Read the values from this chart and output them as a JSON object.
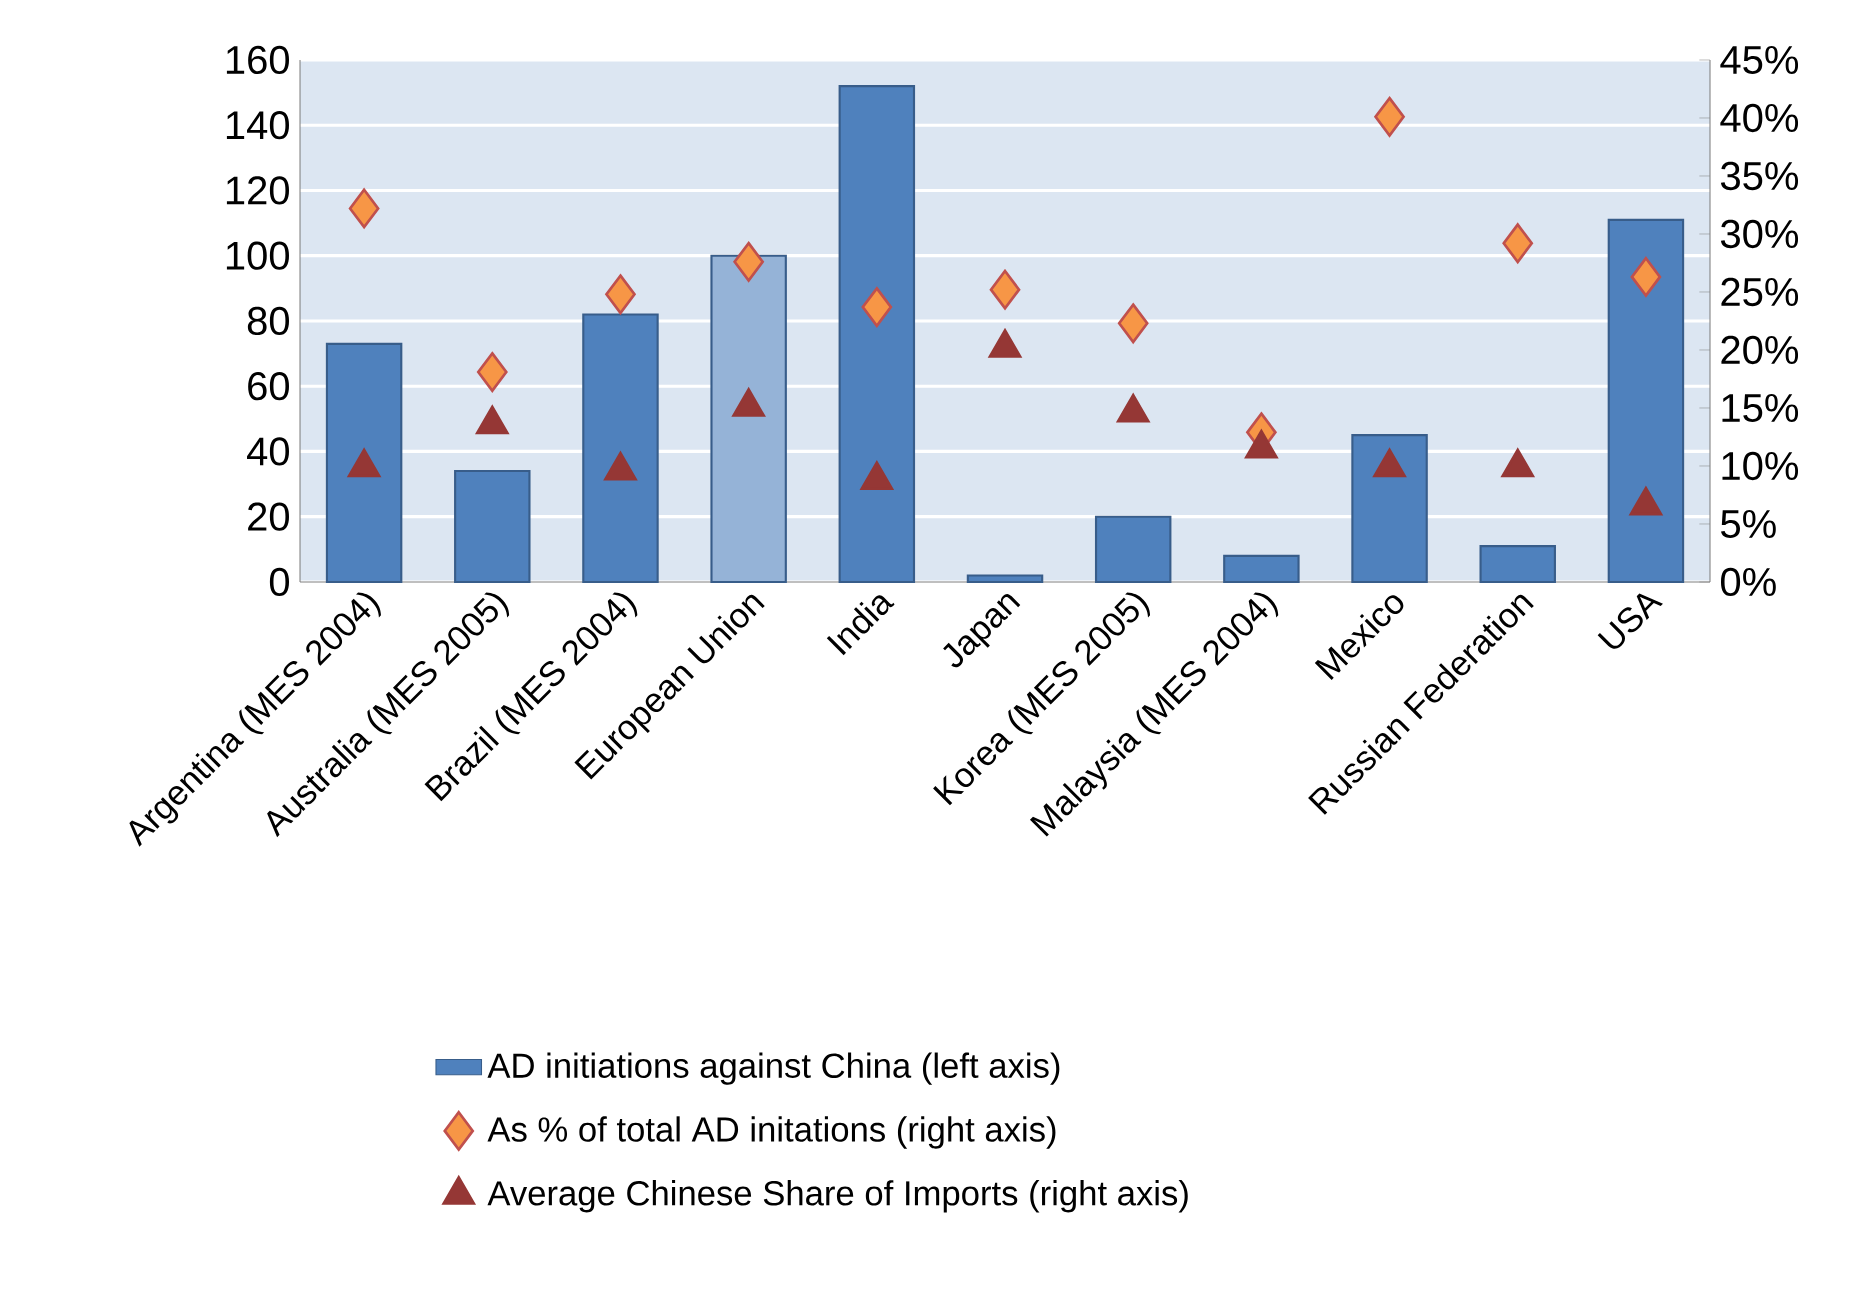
{
  "chart_data": {
    "type": "bar",
    "categories": [
      "Argentina (MES 2004)",
      "Australia (MES 2005)",
      "Brazil (MES 2004)",
      "European Union",
      "India",
      "Japan",
      "Korea (MES 2005)",
      "Malaysia (MES 2004)",
      "Mexico",
      "Russian Federation",
      "USA"
    ],
    "series": [
      {
        "name": "AD initiations against China (left axis)",
        "color": "#4f81bd",
        "colors": [
          "#4f81bd",
          "#4f81bd",
          "#4f81bd",
          "#95b3d7",
          "#4f81bd",
          "#4f81bd",
          "#4f81bd",
          "#4f81bd",
          "#4f81bd",
          "#4f81bd",
          "#4f81bd"
        ],
        "values": [
          73,
          34,
          82,
          100,
          152,
          2,
          20,
          8,
          45,
          11,
          111
        ]
      },
      {
        "name": "As % of total AD initations  (right axis)",
        "type": "scatter",
        "axis": "y2",
        "marker": "diamond",
        "color": "#f79646",
        "values": [
          32.2,
          18.1,
          24.8,
          27.6,
          23.7,
          25.2,
          22.3,
          12.9,
          40.1,
          29.2,
          26.3
        ]
      },
      {
        "name": "Average Chinese Share of Imports (right axis)",
        "type": "scatter",
        "axis": "y2",
        "marker": "triangle",
        "color": "#953735",
        "values": [
          9.9,
          13.6,
          9.6,
          15.1,
          8.8,
          20.2,
          14.6,
          11.5,
          9.9,
          9.9,
          6.6
        ]
      }
    ],
    "ylim": [
      0,
      160
    ],
    "yticks": [
      0,
      20,
      40,
      60,
      80,
      100,
      120,
      140,
      160
    ],
    "y2lim": [
      0,
      45
    ],
    "y2ticks": [
      {
        "value": 0,
        "label": "0%"
      },
      {
        "value": 5,
        "label": "5%"
      },
      {
        "value": 10,
        "label": "10%"
      },
      {
        "value": 15,
        "label": "15%"
      },
      {
        "value": 20,
        "label": "20%"
      },
      {
        "value": 25,
        "label": "25%"
      },
      {
        "value": 30,
        "label": "30%"
      },
      {
        "value": 35,
        "label": "35%"
      },
      {
        "value": 40,
        "label": "40%"
      },
      {
        "value": 45,
        "label": "45%"
      }
    ],
    "grid": "y",
    "legend": "bottom"
  }
}
